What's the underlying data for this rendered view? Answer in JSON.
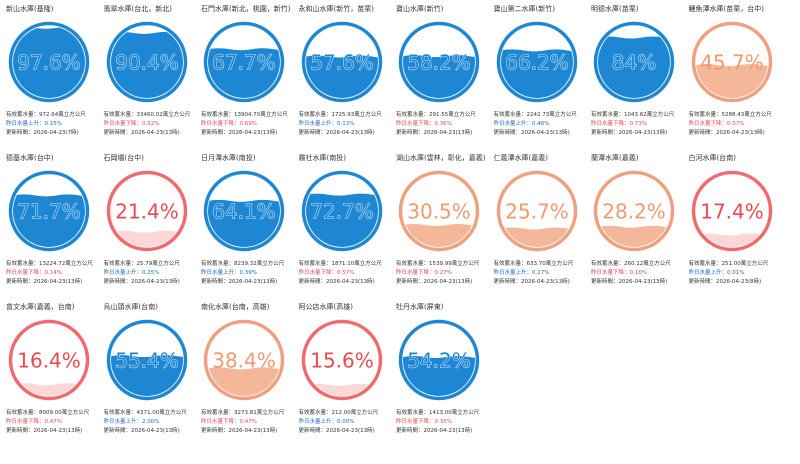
{
  "labels": {
    "capacity_prefix": "有效蓄水量：",
    "capacity_suffix": "萬立方公尺",
    "updated_prefix": "更新時間：",
    "change_up": "昨日水量上升",
    "change_down": "昨日水量下降"
  },
  "colors": {
    "blue_stroke": "#1e87d4",
    "blue_fill": "#1e87d4",
    "blue_text": "#1e87d4",
    "orange_stroke": "#f0a080",
    "orange_fill": "#f4b799",
    "orange_text": "#f09a70",
    "red_stroke": "#ef6b6f",
    "red_fill": "#fbd7d7",
    "red_text": "#e84a50"
  },
  "reservoirs": [
    {
      "name": "新山水庫(基隆)",
      "percent": 97.6,
      "percent_text": "97.6%",
      "level": "blue",
      "capacity": "972.64",
      "change_dir": "up",
      "change": "0.15%",
      "updated": "2026-04-23(7時)"
    },
    {
      "name": "翡翠水庫(台北，新北)",
      "percent": 90.4,
      "percent_text": "90.4%",
      "level": "blue",
      "capacity": "33460.02",
      "change_dir": "down",
      "change": "0.52%",
      "updated": "2026-04-23(13時)"
    },
    {
      "name": "石門水庫(新北，桃園，新竹)",
      "percent": 67.7,
      "percent_text": "67.7%",
      "level": "blue",
      "capacity": "13904.70",
      "change_dir": "down",
      "change": "0.69%",
      "updated": "2026-04-23(13時)"
    },
    {
      "name": "永和山水庫(新竹，苗栗)",
      "percent": 57.6,
      "percent_text": "57.6%",
      "level": "blue",
      "capacity": "1725.93",
      "change_dir": "up",
      "change": "0.13%",
      "updated": "2026-04-23(13時)"
    },
    {
      "name": "寶山水庫(新竹)",
      "percent": 58.2,
      "percent_text": "58.2%",
      "level": "blue",
      "capacity": "291.55",
      "change_dir": "down",
      "change": "0.36%",
      "updated": "2026-04-23(13時)"
    },
    {
      "name": "寶山第二水庫(新竹)",
      "percent": 66.2,
      "percent_text": "66.2%",
      "level": "blue",
      "capacity": "2242.73",
      "change_dir": "up",
      "change": "0.46%",
      "updated": "2026-04-23(13時)"
    },
    {
      "name": "明德水庫(苗栗)",
      "percent": 84,
      "percent_text": "84%",
      "level": "blue",
      "capacity": "1043.62",
      "change_dir": "down",
      "change": "0.73%",
      "updated": "2026-04-23(13時)"
    },
    {
      "name": "鯉魚潭水庫(苗栗，台中)",
      "percent": 45.7,
      "percent_text": "45.7%",
      "level": "orange",
      "capacity": "5288.43",
      "change_dir": "down",
      "change": "0.07%",
      "updated": "2026-04-23(13時)"
    },
    {
      "name": "德基水庫(台中)",
      "percent": 71.7,
      "percent_text": "71.7%",
      "level": "blue",
      "capacity": "13224.72",
      "change_dir": "down",
      "change": "0.14%",
      "updated": "2026-04-23(13時)"
    },
    {
      "name": "石岡壩(台中)",
      "percent": 21.4,
      "percent_text": "21.4%",
      "level": "red",
      "capacity": "25.79",
      "change_dir": "up",
      "change": "0.25%",
      "updated": "2026-04-23(13時)"
    },
    {
      "name": "日月潭水庫(南投)",
      "percent": 64.1,
      "percent_text": "64.1%",
      "level": "blue",
      "capacity": "8239.32",
      "change_dir": "up",
      "change": "0.39%",
      "updated": "2026-04-23(13時)"
    },
    {
      "name": "霧社水庫(南投)",
      "percent": 72.7,
      "percent_text": "72.7%",
      "level": "blue",
      "capacity": "1871.10",
      "change_dir": "down",
      "change": "0.57%",
      "updated": "2026-04-23(13時)"
    },
    {
      "name": "湖山水庫(雲林，彰化，嘉義)",
      "percent": 30.5,
      "percent_text": "30.5%",
      "level": "orange",
      "capacity": "1539.99",
      "change_dir": "down",
      "change": "0.27%",
      "updated": "2026-04-23(13時)"
    },
    {
      "name": "仁義潭水庫(嘉義)",
      "percent": 25.7,
      "percent_text": "25.7%",
      "level": "orange",
      "capacity": "633.70",
      "change_dir": "up",
      "change": "0.17%",
      "updated": "2026-04-23(13時)"
    },
    {
      "name": "蘭潭水庫(嘉義)",
      "percent": 28.2,
      "percent_text": "28.2%",
      "level": "orange",
      "capacity": "260.12",
      "change_dir": "down",
      "change": "0.16%",
      "updated": "2026-04-23(13時)"
    },
    {
      "name": "白河水庫(台南)",
      "percent": 17.4,
      "percent_text": "17.4%",
      "level": "red",
      "capacity": "251.00",
      "change_dir": "up",
      "change": "0.01%",
      "updated": "2026-04-23(8時)"
    },
    {
      "name": "曾文水庫(嘉義，台南)",
      "percent": 16.4,
      "percent_text": "16.4%",
      "level": "red",
      "capacity": "8009.00",
      "change_dir": "down",
      "change": "0.47%",
      "updated": "2026-04-23(13時)"
    },
    {
      "name": "烏山頭水庫(台南)",
      "percent": 55.4,
      "percent_text": "55.4%",
      "level": "blue",
      "capacity": "4371.00",
      "change_dir": "up",
      "change": "2.00%",
      "updated": "2026-04-23(13時)"
    },
    {
      "name": "南化水庫(台南，高雄)",
      "percent": 38.4,
      "percent_text": "38.4%",
      "level": "orange",
      "capacity": "3273.81",
      "change_dir": "down",
      "change": "0.47%",
      "updated": "2026-04-23(13時)"
    },
    {
      "name": "阿公店水庫(高雄)",
      "percent": 15.6,
      "percent_text": "15.6%",
      "level": "red",
      "capacity": "212.00",
      "change_dir": "up",
      "change": "0.00%",
      "updated": "2026-04-23(13時)"
    },
    {
      "name": "牡丹水庫(屏東)",
      "percent": 54.2,
      "percent_text": "54.2%",
      "level": "blue",
      "capacity": "1413.00",
      "change_dir": "down",
      "change": "0.35%",
      "updated": "2026-04-23(13時)"
    }
  ]
}
